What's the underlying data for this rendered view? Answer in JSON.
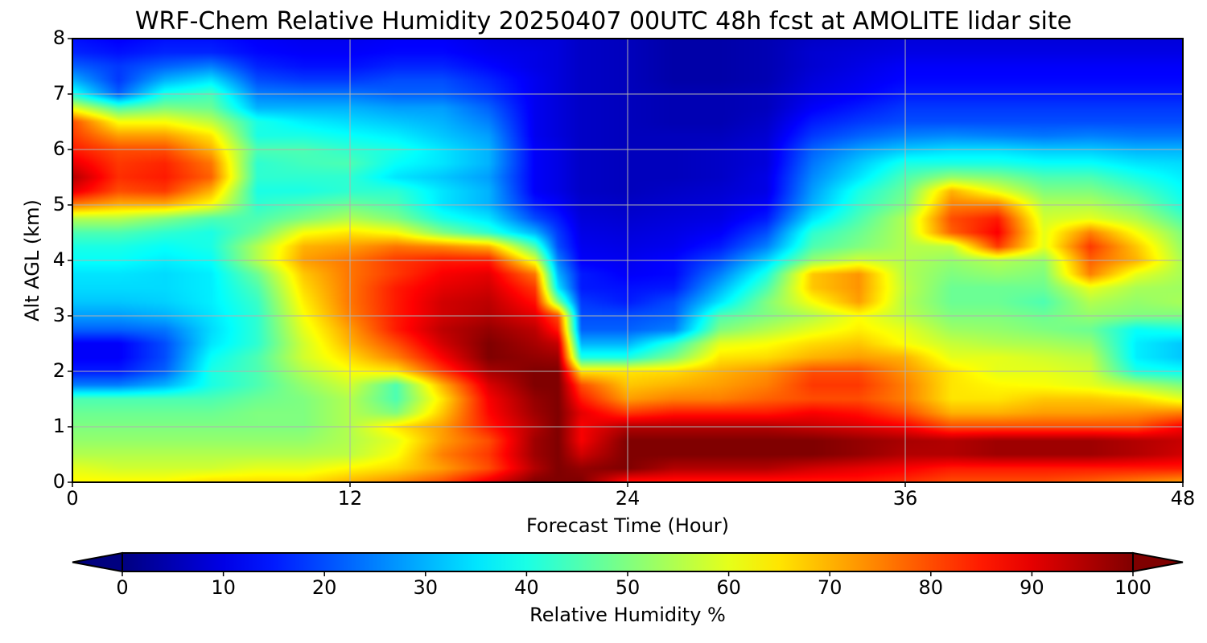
{
  "chart_data": {
    "type": "heatmap",
    "title": "WRF-Chem Relative Humidity 20250407 00UTC 48h fcst at AMOLITE lidar site",
    "xlabel": "Forecast Time (Hour)",
    "ylabel": "Alt AGL (km)",
    "xlim": [
      0,
      48
    ],
    "ylim": [
      0,
      8
    ],
    "x_ticks": [
      "0",
      "12",
      "24",
      "36",
      "48"
    ],
    "y_ticks": [
      "0",
      "1",
      "2",
      "3",
      "4",
      "5",
      "6",
      "7",
      "8"
    ],
    "grid": true,
    "colormap": "jet",
    "colorbar": {
      "label": "Relative Humidity %",
      "orientation": "horizontal",
      "placement": "bottom",
      "extend": "both",
      "range": [
        0,
        100
      ],
      "ticks": [
        "0",
        "10",
        "20",
        "30",
        "40",
        "50",
        "60",
        "70",
        "80",
        "90",
        "100"
      ]
    },
    "x": [
      0,
      2,
      4,
      6,
      8,
      10,
      12,
      14,
      16,
      18,
      20,
      21,
      22,
      24,
      26,
      28,
      30,
      32,
      34,
      36,
      38,
      40,
      42,
      44,
      46,
      48
    ],
    "y": [
      0,
      0.25,
      0.5,
      0.75,
      1,
      1.25,
      1.5,
      1.75,
      2,
      2.25,
      2.5,
      2.75,
      3,
      3.25,
      3.5,
      3.75,
      4,
      4.25,
      4.5,
      4.75,
      5,
      5.25,
      5.5,
      5.75,
      6,
      6.25,
      6.5,
      6.75,
      7,
      7.25,
      7.5,
      7.75,
      8
    ],
    "z": [
      [
        63,
        63,
        63,
        66,
        66,
        66,
        70,
        74,
        80,
        90,
        100,
        100,
        100,
        85,
        85,
        85,
        85,
        85,
        85,
        83,
        80,
        80,
        80,
        78,
        75,
        72
      ],
      [
        60,
        58,
        58,
        58,
        60,
        60,
        63,
        66,
        72,
        80,
        95,
        100,
        98,
        100,
        95,
        95,
        95,
        92,
        90,
        88,
        85,
        85,
        85,
        85,
        85,
        85
      ],
      [
        55,
        55,
        55,
        55,
        55,
        55,
        56,
        62,
        75,
        82,
        97,
        100,
        92,
        100,
        100,
        100,
        100,
        100,
        98,
        95,
        95,
        97,
        97,
        97,
        95,
        92
      ],
      [
        52,
        52,
        52,
        52,
        52,
        52,
        55,
        60,
        72,
        80,
        97,
        100,
        88,
        100,
        100,
        100,
        100,
        100,
        98,
        96,
        95,
        97,
        97,
        97,
        95,
        93
      ],
      [
        50,
        50,
        50,
        50,
        50,
        50,
        55,
        65,
        72,
        85,
        95,
        100,
        88,
        95,
        95,
        95,
        95,
        93,
        91,
        88,
        80,
        80,
        80,
        80,
        80,
        88
      ],
      [
        48,
        48,
        48,
        48,
        50,
        50,
        55,
        50,
        68,
        87,
        97,
        100,
        90,
        82,
        85,
        85,
        85,
        88,
        86,
        80,
        70,
        70,
        72,
        72,
        73,
        75
      ],
      [
        45,
        45,
        45,
        45,
        48,
        50,
        55,
        45,
        65,
        88,
        98,
        100,
        85,
        72,
        75,
        75,
        78,
        80,
        80,
        75,
        65,
        65,
        68,
        68,
        66,
        60
      ],
      [
        25,
        25,
        30,
        40,
        45,
        52,
        58,
        45,
        70,
        91,
        100,
        100,
        80,
        68,
        70,
        72,
        75,
        82,
        82,
        75,
        65,
        63,
        62,
        60,
        55,
        50
      ],
      [
        15,
        15,
        22,
        40,
        45,
        55,
        62,
        65,
        82,
        96,
        100,
        100,
        65,
        65,
        66,
        70,
        73,
        80,
        80,
        73,
        65,
        60,
        60,
        58,
        40,
        38
      ],
      [
        12,
        12,
        20,
        38,
        45,
        58,
        66,
        75,
        88,
        100,
        98,
        97,
        40,
        40,
        50,
        65,
        66,
        70,
        72,
        70,
        60,
        60,
        58,
        56,
        36,
        32
      ],
      [
        12,
        12,
        20,
        35,
        42,
        58,
        70,
        80,
        92,
        100,
        96,
        93,
        30,
        30,
        42,
        60,
        62,
        66,
        68,
        62,
        57,
        55,
        54,
        52,
        36,
        32
      ],
      [
        22,
        22,
        24,
        34,
        42,
        60,
        72,
        85,
        94,
        98,
        94,
        85,
        22,
        22,
        25,
        50,
        55,
        60,
        64,
        60,
        53,
        52,
        50,
        48,
        38,
        40
      ],
      [
        28,
        28,
        30,
        35,
        42,
        62,
        75,
        85,
        92,
        95,
        90,
        80,
        20,
        20,
        22,
        45,
        50,
        55,
        62,
        56,
        50,
        50,
        48,
        52,
        50,
        50
      ],
      [
        32,
        32,
        33,
        36,
        43,
        64,
        76,
        85,
        92,
        94,
        86,
        50,
        18,
        15,
        20,
        35,
        50,
        62,
        72,
        55,
        48,
        48,
        45,
        55,
        52,
        54
      ],
      [
        34,
        34,
        34,
        36,
        45,
        66,
        76,
        85,
        90,
        92,
        82,
        35,
        15,
        14,
        15,
        30,
        45,
        68,
        73,
        56,
        48,
        48,
        48,
        60,
        54,
        53
      ],
      [
        35,
        35,
        34,
        36,
        48,
        68,
        76,
        82,
        88,
        90,
        76,
        30,
        15,
        12,
        13,
        25,
        40,
        68,
        73,
        55,
        50,
        52,
        50,
        75,
        60,
        54
      ],
      [
        38,
        38,
        36,
        38,
        55,
        72,
        76,
        82,
        85,
        85,
        60,
        25,
        12,
        11,
        13,
        20,
        33,
        52,
        58,
        55,
        52,
        55,
        52,
        78,
        70,
        54
      ],
      [
        40,
        40,
        38,
        40,
        55,
        70,
        72,
        76,
        74,
        70,
        45,
        20,
        11,
        10,
        11,
        15,
        25,
        45,
        50,
        55,
        56,
        82,
        60,
        82,
        68,
        52
      ],
      [
        45,
        45,
        42,
        40,
        48,
        62,
        65,
        62,
        50,
        42,
        30,
        18,
        10,
        9,
        10,
        12,
        20,
        42,
        48,
        55,
        78,
        88,
        60,
        75,
        62,
        50
      ],
      [
        55,
        55,
        50,
        45,
        45,
        50,
        55,
        50,
        40,
        35,
        20,
        15,
        9,
        8,
        9,
        10,
        15,
        35,
        45,
        55,
        80,
        85,
        58,
        60,
        55,
        45
      ],
      [
        75,
        70,
        70,
        62,
        42,
        45,
        48,
        45,
        35,
        30,
        15,
        12,
        8,
        7,
        8,
        9,
        12,
        30,
        42,
        50,
        75,
        75,
        55,
        55,
        50,
        40
      ],
      [
        90,
        80,
        82,
        70,
        40,
        40,
        42,
        42,
        35,
        30,
        12,
        10,
        7,
        6,
        7,
        8,
        10,
        28,
        40,
        48,
        70,
        60,
        50,
        50,
        45,
        38
      ],
      [
        95,
        83,
        85,
        78,
        42,
        42,
        42,
        35,
        32,
        28,
        12,
        10,
        7,
        6,
        6,
        7,
        10,
        26,
        35,
        45,
        52,
        50,
        45,
        45,
        40,
        36
      ],
      [
        90,
        82,
        84,
        76,
        42,
        44,
        45,
        38,
        35,
        30,
        12,
        10,
        7,
        6,
        6,
        7,
        9,
        24,
        32,
        40,
        40,
        40,
        38,
        38,
        35,
        34
      ],
      [
        85,
        80,
        80,
        70,
        45,
        45,
        42,
        40,
        35,
        30,
        12,
        10,
        7,
        6,
        6,
        7,
        9,
        22,
        28,
        32,
        34,
        34,
        32,
        32,
        30,
        30
      ],
      [
        82,
        72,
        72,
        65,
        40,
        40,
        38,
        36,
        32,
        28,
        11,
        9,
        7,
        6,
        6,
        6,
        8,
        18,
        22,
        25,
        26,
        25,
        24,
        25,
        24,
        24
      ],
      [
        80,
        62,
        62,
        56,
        40,
        36,
        34,
        32,
        30,
        25,
        11,
        9,
        7,
        6,
        5,
        5,
        7,
        15,
        18,
        20,
        20,
        20,
        20,
        20,
        20,
        20
      ],
      [
        60,
        45,
        50,
        48,
        30,
        30,
        30,
        28,
        28,
        22,
        11,
        9,
        7,
        6,
        5,
        5,
        6,
        12,
        15,
        18,
        18,
        18,
        18,
        18,
        18,
        18
      ],
      [
        40,
        22,
        40,
        44,
        25,
        24,
        24,
        22,
        22,
        18,
        11,
        9,
        7,
        6,
        5,
        5,
        6,
        10,
        12,
        15,
        15,
        15,
        15,
        15,
        15,
        15
      ],
      [
        30,
        18,
        30,
        35,
        20,
        18,
        18,
        20,
        20,
        16,
        11,
        9,
        7,
        6,
        4,
        4,
        5,
        9,
        11,
        13,
        13,
        13,
        13,
        13,
        13,
        13
      ],
      [
        22,
        18,
        22,
        25,
        16,
        14,
        14,
        16,
        16,
        13,
        10,
        9,
        7,
        6,
        4,
        4,
        5,
        8,
        10,
        12,
        12,
        12,
        12,
        12,
        12,
        12
      ],
      [
        16,
        14,
        16,
        16,
        13,
        12,
        12,
        13,
        13,
        11,
        10,
        9,
        7,
        6,
        4,
        4,
        5,
        8,
        9,
        10,
        10,
        10,
        10,
        10,
        10,
        10
      ],
      [
        14,
        12,
        14,
        14,
        12,
        11,
        11,
        12,
        12,
        10,
        9,
        9,
        7,
        6,
        4,
        4,
        5,
        7,
        8,
        9,
        9,
        9,
        9,
        9,
        9,
        9
      ]
    ]
  }
}
